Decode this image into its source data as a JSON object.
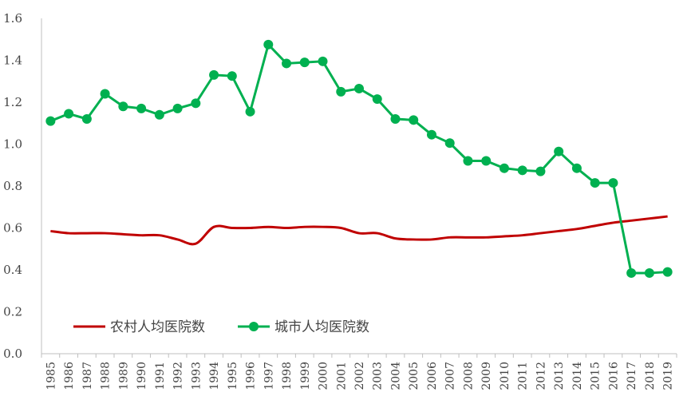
{
  "chart_data": {
    "type": "line",
    "categories": [
      "1985",
      "1986",
      "1987",
      "1988",
      "1989",
      "1990",
      "1991",
      "1992",
      "1993",
      "1994",
      "1995",
      "1996",
      "1997",
      "1998",
      "1999",
      "2000",
      "2001",
      "2002",
      "2003",
      "2004",
      "2005",
      "2006",
      "2007",
      "2008",
      "2009",
      "2010",
      "2011",
      "2012",
      "2013",
      "2014",
      "2015",
      "2016",
      "2017",
      "2018",
      "2019"
    ],
    "ylim": [
      0,
      1.6
    ],
    "yticks": [
      "0.0",
      "0.2",
      "0.4",
      "0.6",
      "0.8",
      "1.0",
      "1.2",
      "1.4",
      "1.6"
    ],
    "legend_position": "bottom-left",
    "grid": false,
    "series": [
      {
        "name": "农村人均医院数",
        "color": "#c00000",
        "marker": false,
        "smooth": true,
        "values": [
          0.585,
          0.575,
          0.575,
          0.575,
          0.57,
          0.565,
          0.565,
          0.545,
          0.525,
          0.605,
          0.6,
          0.6,
          0.605,
          0.6,
          0.605,
          0.605,
          0.6,
          0.575,
          0.575,
          0.55,
          0.545,
          0.545,
          0.555,
          0.555,
          0.555,
          0.56,
          0.565,
          0.575,
          0.585,
          0.595,
          0.61,
          0.625,
          0.635,
          0.645,
          0.655
        ]
      },
      {
        "name": "城市人均医院数",
        "color": "#00b050",
        "marker": true,
        "smooth": false,
        "values": [
          1.11,
          1.145,
          1.12,
          1.24,
          1.18,
          1.17,
          1.14,
          1.17,
          1.195,
          1.33,
          1.325,
          1.155,
          1.475,
          1.385,
          1.39,
          1.395,
          1.25,
          1.265,
          1.215,
          1.12,
          1.115,
          1.045,
          1.005,
          0.92,
          0.92,
          0.885,
          0.875,
          0.87,
          0.965,
          0.885,
          0.815,
          0.815,
          0.385,
          0.385,
          0.39
        ]
      }
    ]
  }
}
